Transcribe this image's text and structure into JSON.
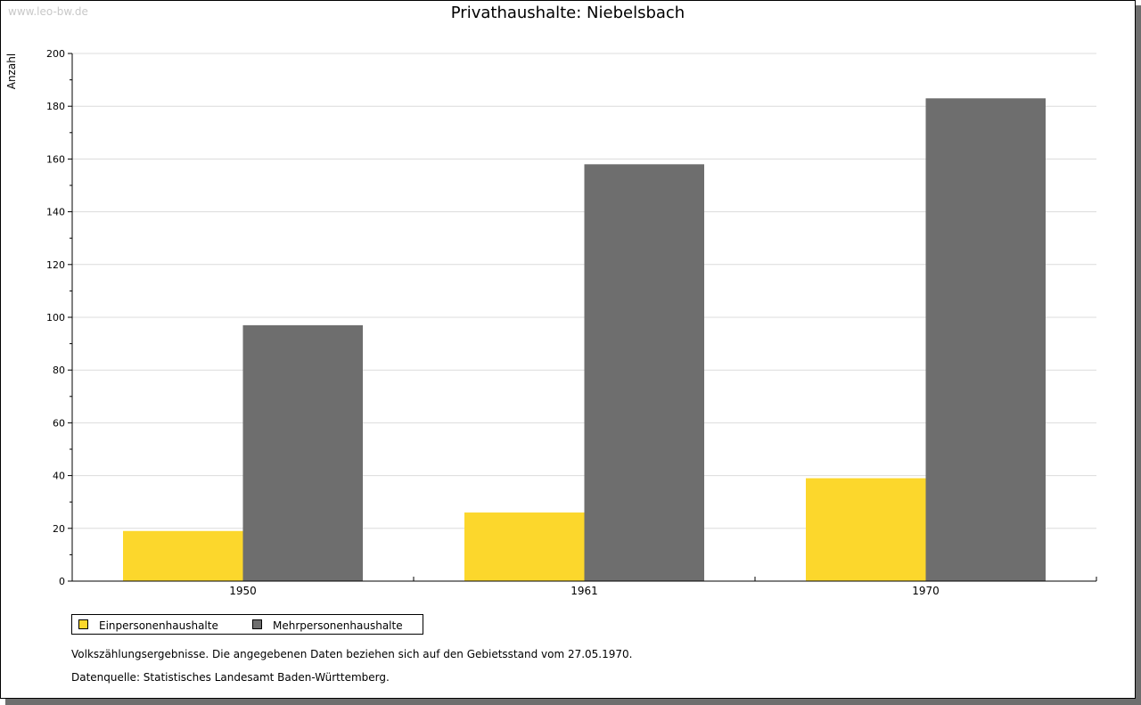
{
  "watermark": "www.leo-bw.de",
  "chart_data": {
    "type": "bar",
    "title": "Privathaushalte: Niebelsbach",
    "xlabel": "",
    "ylabel": "Anzahl",
    "ylim": [
      0,
      200
    ],
    "yticks": [
      0,
      20,
      40,
      60,
      80,
      100,
      120,
      140,
      160,
      180,
      200
    ],
    "grid": true,
    "categories": [
      "1950",
      "1961",
      "1970"
    ],
    "series": [
      {
        "name": "Einpersonenhaushalte",
        "color": "#fcd72c",
        "values": [
          19,
          26,
          39
        ]
      },
      {
        "name": "Mehrpersonenhaushalte",
        "color": "#6e6e6e",
        "values": [
          97,
          158,
          183
        ]
      }
    ],
    "legend_position": "bottom-left"
  },
  "notes": [
    "Volkszählungsergebnisse. Die angegebenen Daten beziehen sich auf den Gebietsstand vom 27.05.1970.",
    "Datenquelle: Statistisches Landesamt Baden-Württemberg."
  ]
}
